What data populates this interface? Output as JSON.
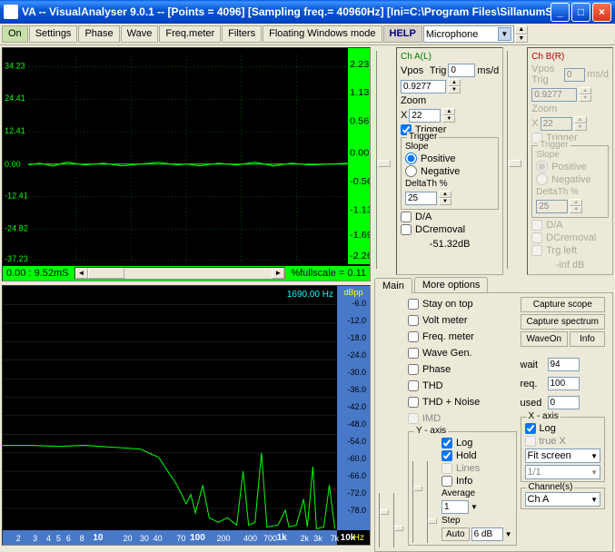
{
  "title": "VA  --  VisualAnalyser 9.0.1  --   [Points = 4096]   [Sampling freq.= 40960Hz]   [Ini=C:\\Program Files\\SillanumSo...",
  "toolbar": {
    "on": "On",
    "settings": "Settings",
    "phase": "Phase",
    "wave": "Wave",
    "freq": "Freq.meter",
    "filters": "Filters",
    "floating": "Floating Windows mode",
    "help": "HELP",
    "source": "Microphone"
  },
  "scope": {
    "y_ticks": [
      "34.23",
      "24.41",
      "12.41",
      "0.00",
      "-12.41",
      "-24.82",
      "-37.23"
    ],
    "right_ticks": [
      "2.23",
      "1.13",
      "0.56",
      "0.00",
      "-0.56",
      "-1.13",
      "-1.69",
      "-2.26"
    ],
    "range_label": "0.00 : 9.52mS",
    "fullscale": "%fullscale = 0.11",
    "grid_color": "#00a000",
    "trace_color": "#00ff00",
    "bg": "#000000"
  },
  "spectrum": {
    "readout": "1690.00 Hz",
    "dbpp": "dBpp",
    "y_ticks": [
      "-6.0",
      "-12.0",
      "-18.0",
      "-24.0",
      "-30.0",
      "-36.0",
      "-42.0",
      "-48.0",
      "-54.0",
      "-60.0",
      "-66.0",
      "-72.0",
      "-78.0"
    ],
    "x_ticks": [
      {
        "l": "2",
        "p": 4
      },
      {
        "l": "3",
        "p": 9
      },
      {
        "l": "4",
        "p": 13
      },
      {
        "l": "5",
        "p": 16
      },
      {
        "l": "6",
        "p": 19
      },
      {
        "l": "8",
        "p": 23
      },
      {
        "l": "10",
        "p": 27,
        "b": true
      },
      {
        "l": "20",
        "p": 36
      },
      {
        "l": "30",
        "p": 41
      },
      {
        "l": "40",
        "p": 45
      },
      {
        "l": "70",
        "p": 52
      },
      {
        "l": "100",
        "p": 56,
        "b": true
      },
      {
        "l": "200",
        "p": 64
      },
      {
        "l": "400",
        "p": 72
      },
      {
        "l": "700",
        "p": 78
      },
      {
        "l": "1k",
        "p": 82,
        "b": true
      },
      {
        "l": "2k",
        "p": 89
      },
      {
        "l": "3k",
        "p": 93
      },
      {
        "l": "7k",
        "p": 98
      },
      {
        "l": "10k",
        "p": 101,
        "b": true
      }
    ],
    "hz": "Hz",
    "bg": "#000000",
    "trace_color": "#00ff00",
    "scale_bg": "#4878c8"
  },
  "chA": {
    "title": "Ch A(L)",
    "vpos": "Vpos",
    "trig_lbl": "Trig",
    "msd": "ms/d",
    "msd_top": "0",
    "msd_val": "0.9277",
    "zoom": "Zoom",
    "zoom_x": "X",
    "zoom_val": "22",
    "trigger_chk": "Trigger",
    "trigger_grp": "Trigger",
    "slope": "Slope",
    "pos": "Positive",
    "neg": "Negative",
    "delta": "DeltaTh %",
    "delta_val": "25",
    "da": "D/A",
    "dcrem": "DCremoval",
    "db": "-51.32dB"
  },
  "chB": {
    "title": "Ch B(R)",
    "msd_top": "0",
    "msd_val": "0.9277",
    "zoom_val": "22",
    "trigger_chk": "Trigger",
    "trigger_grp": "Trigger",
    "slope": "Slope",
    "pos": "Positive",
    "neg": "Negative",
    "delta": "DeltaTh %",
    "delta_val": "25",
    "da": "D/A",
    "dcrem": "DCremoval",
    "trgleft": "Trg left",
    "db": "-inf dB"
  },
  "main": {
    "tab1": "Main",
    "tab2": "More options",
    "stay": "Stay on top",
    "volt": "Volt meter",
    "freq": "Freq. meter",
    "wave": "Wave Gen.",
    "phase": "Phase",
    "thd": "THD",
    "thdn": "THD + Noise",
    "imd": "IMD",
    "capscope": "Capture scope",
    "capspec": "Capture spectrum",
    "waveon": "WaveOn",
    "info": "Info",
    "wait": "wait",
    "wait_v": "94",
    "req": "req.",
    "req_v": "100",
    "used": "used",
    "used_v": "0",
    "yaxis": "Y - axis",
    "log": "Log",
    "hold": "Hold",
    "lines": "Lines",
    "info2": "Info",
    "avg": "Average",
    "avg_v": "1",
    "step": "Step",
    "step_v": "6 dB",
    "auto": "Auto",
    "xaxis": "X - axis",
    "xlog": "Log",
    "truex": "true X",
    "fit": "Fit screen",
    "oneone": "1/1",
    "channels": "Channel(s)",
    "ch_v": "Ch A"
  }
}
